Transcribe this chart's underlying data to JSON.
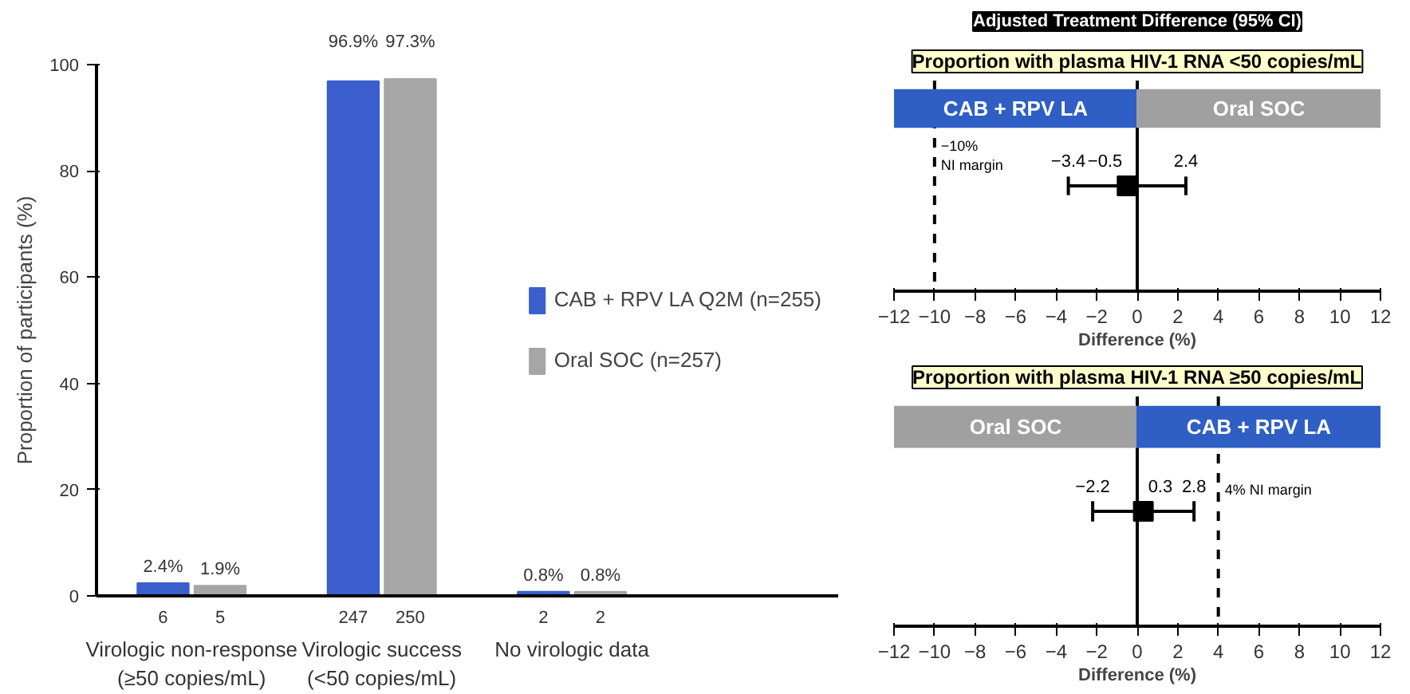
{
  "chart_data": [
    {
      "type": "bar",
      "ylabel": "Proportion of participants (%)",
      "categories": [
        "Virologic non-response\n(≥50 copies/mL)",
        "Virologic success\n(<50 copies/mL)",
        "No virologic data"
      ],
      "series": [
        {
          "name": "CAB + RPV LA Q2M (n=255)",
          "color": "#3a5fcd",
          "values": [
            2.4,
            96.9,
            0.8
          ],
          "value_labels": [
            "2.4%",
            "96.9%",
            "0.8%"
          ]
        },
        {
          "name": "Oral SOC (n=257)",
          "color": "#a6a6a6",
          "values": [
            1.9,
            97.3,
            0.8
          ],
          "value_labels": [
            "1.9%",
            "97.3%",
            "0.8%"
          ]
        }
      ],
      "ylim": [
        0,
        100
      ],
      "yticks": [
        0,
        20,
        40,
        60,
        80,
        100
      ],
      "grid": false,
      "legend": "right",
      "annotations": [
        "6",
        "5",
        "247",
        "250",
        "2",
        "2"
      ]
    },
    {
      "type": "scatter",
      "orientation": "horizontal",
      "title": "Adjusted Treatment Difference (95% CI)",
      "subtitle": "Proportion with plasma HIV-1 RNA <50 copies/mL",
      "xlabel": "Difference (%)",
      "categories": [
        null
      ],
      "values": [
        -0.5
      ],
      "value_labels": [
        "−0.5"
      ],
      "errors": [
        [
          -3.4,
          2.4
        ]
      ],
      "color": "#000000",
      "marker": "square",
      "xlim": [
        -12,
        12
      ],
      "xticks": [
        -12,
        -10,
        -8,
        -6,
        -4,
        -2,
        0,
        2,
        4,
        6,
        8,
        10,
        12
      ],
      "grid": false,
      "tick_labels": "x",
      "ref_lines": [
        {
          "axis": "x",
          "value": -10,
          "label": "−10%\nNI margin",
          "line_style": "dashed"
        },
        {
          "axis": "x",
          "value": 0,
          "line_style": "solid"
        }
      ],
      "bands": [
        {
          "axis": "x",
          "from": -12,
          "to": 0,
          "label": "CAB + RPV LA",
          "color": "#2f5fc4"
        },
        {
          "axis": "x",
          "from": 0,
          "to": 12,
          "label": "Oral SOC",
          "color": "#a0a0a0"
        }
      ],
      "annotations": [
        "−3.4",
        "2.4"
      ]
    },
    {
      "type": "scatter",
      "orientation": "horizontal",
      "title": "Proportion with plasma HIV-1 RNA ≥50 copies/mL",
      "xlabel": "Difference (%)",
      "categories": [
        null
      ],
      "values": [
        0.3
      ],
      "value_labels": [
        "0.3"
      ],
      "errors": [
        [
          -2.2,
          2.8
        ]
      ],
      "color": "#000000",
      "marker": "square",
      "xlim": [
        -12,
        12
      ],
      "xticks": [
        -12,
        -10,
        -8,
        -6,
        -4,
        -2,
        0,
        2,
        4,
        6,
        8,
        10,
        12
      ],
      "grid": false,
      "tick_labels": "x",
      "ref_lines": [
        {
          "axis": "x",
          "value": 4,
          "label": "4% NI margin",
          "line_style": "dashed"
        },
        {
          "axis": "x",
          "value": 0,
          "line_style": "solid"
        }
      ],
      "bands": [
        {
          "axis": "x",
          "from": -12,
          "to": 0,
          "label": "Oral SOC",
          "color": "#a0a0a0"
        },
        {
          "axis": "x",
          "from": 0,
          "to": 12,
          "label": "CAB + RPV LA",
          "color": "#2f5fc4"
        }
      ],
      "annotations": [
        "−2.2",
        "2.8"
      ]
    }
  ]
}
